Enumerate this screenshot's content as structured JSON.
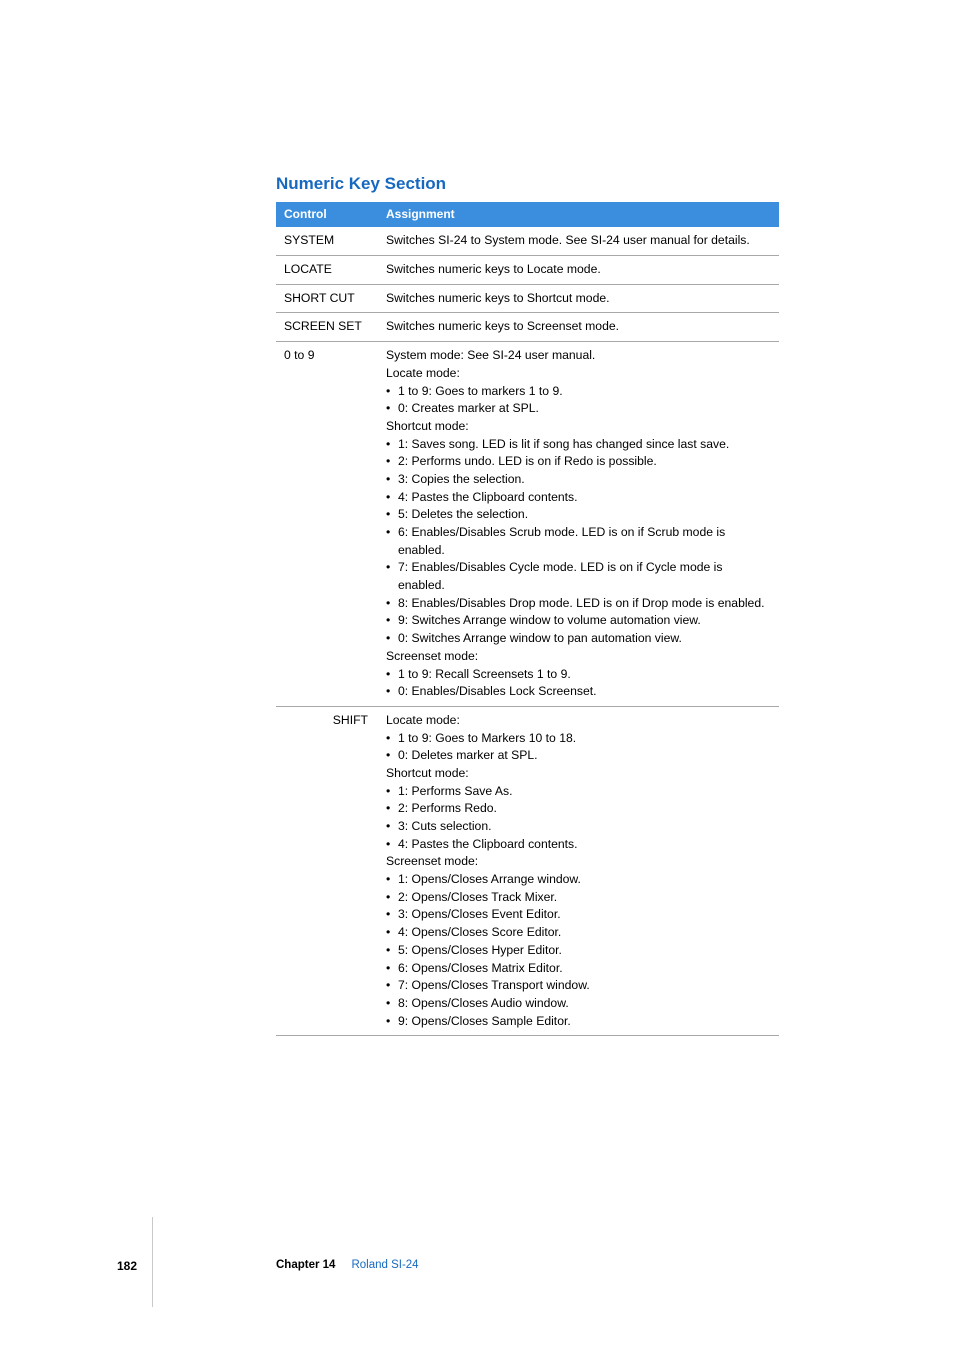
{
  "section": {
    "title": "Numeric Key Section",
    "title_color": "#1769c0"
  },
  "table": {
    "header_bg": "#3b8ede",
    "columns": {
      "control": "Control",
      "assignment": "Assignment"
    },
    "rows": [
      {
        "control": "SYSTEM",
        "align": "left",
        "assignment_plain": "Switches SI-24 to System mode. See SI-24 user manual for details."
      },
      {
        "control": "LOCATE",
        "align": "left",
        "assignment_plain": "Switches numeric keys to Locate mode."
      },
      {
        "control": "SHORT CUT",
        "align": "left",
        "assignment_plain": "Switches numeric keys to Shortcut mode."
      },
      {
        "control": "SCREEN SET",
        "align": "left",
        "assignment_plain": "Switches numeric keys to Screenset mode."
      },
      {
        "control": "0 to 9",
        "align": "left",
        "assignment_blocks": [
          {
            "label": "System mode:  See SI-24 user manual."
          },
          {
            "label": "Locate mode:",
            "bullets": [
              "1 to 9:  Goes to markers 1 to 9.",
              "0:  Creates marker at SPL."
            ]
          },
          {
            "label": "Shortcut mode:",
            "bullets": [
              "1:  Saves song. LED is lit if song has changed since last save.",
              "2:  Performs undo. LED is on if Redo is possible.",
              "3:  Copies the selection.",
              "4:  Pastes the Clipboard contents.",
              "5:  Deletes the selection.",
              "6:  Enables/Disables Scrub mode. LED is on if Scrub mode is enabled.",
              "7:  Enables/Disables Cycle mode. LED is on if Cycle mode is enabled.",
              "8:  Enables/Disables Drop mode. LED is on if Drop mode is enabled.",
              "9:  Switches Arrange window to volume automation view.",
              "0:  Switches Arrange window to pan automation view."
            ]
          },
          {
            "label": "Screenset mode:",
            "bullets": [
              "1 to 9:  Recall Screensets 1 to 9.",
              "0:  Enables/Disables Lock Screenset."
            ]
          }
        ]
      },
      {
        "control": "SHIFT",
        "align": "right",
        "assignment_blocks": [
          {
            "label": "Locate mode:",
            "bullets": [
              "1 to 9:  Goes to Markers 10 to 18.",
              "0:  Deletes marker at SPL."
            ]
          },
          {
            "label": "Shortcut mode:",
            "bullets": [
              "1:  Performs Save As.",
              "2:  Performs Redo.",
              "3:  Cuts selection.",
              "4:  Pastes the Clipboard contents."
            ]
          },
          {
            "label": "Screenset mode:",
            "bullets": [
              "1:  Opens/Closes Arrange window.",
              "2:  Opens/Closes Track Mixer.",
              "3:  Opens/Closes Event Editor.",
              "4:  Opens/Closes Score Editor.",
              "5:  Opens/Closes Hyper Editor.",
              "6:  Opens/Closes Matrix Editor.",
              "7:  Opens/Closes Transport window.",
              "8:  Opens/Closes Audio window.",
              "9:  Opens/Closes Sample Editor."
            ]
          }
        ]
      }
    ]
  },
  "footer": {
    "page_number": "182",
    "chapter_label": "Chapter 14",
    "chapter_title": "Roland SI-24",
    "chapter_title_color": "#1769c0"
  }
}
